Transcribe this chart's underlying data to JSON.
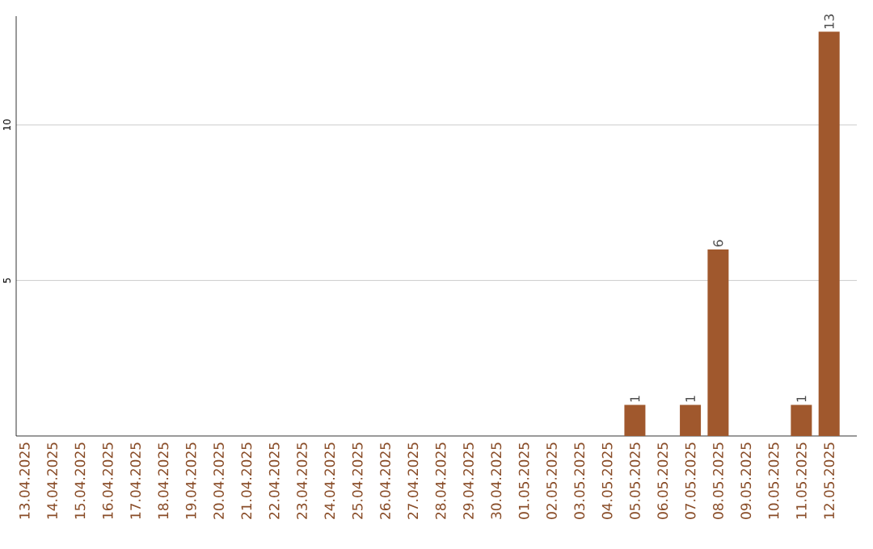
{
  "chart_data": {
    "type": "bar",
    "categories": [
      "13.04.2025",
      "14.04.2025",
      "15.04.2025",
      "16.04.2025",
      "17.04.2025",
      "18.04.2025",
      "19.04.2025",
      "20.04.2025",
      "21.04.2025",
      "22.04.2025",
      "23.04.2025",
      "24.04.2025",
      "25.04.2025",
      "26.04.2025",
      "27.04.2025",
      "28.04.2025",
      "29.04.2025",
      "30.04.2025",
      "01.05.2025",
      "02.05.2025",
      "03.05.2025",
      "04.05.2025",
      "05.05.2025",
      "06.05.2025",
      "07.05.2025",
      "08.05.2025",
      "09.05.2025",
      "10.05.2025",
      "11.05.2025",
      "12.05.2025"
    ],
    "values": [
      0,
      0,
      0,
      0,
      0,
      0,
      0,
      0,
      0,
      0,
      0,
      0,
      0,
      0,
      0,
      0,
      0,
      0,
      0,
      0,
      0,
      0,
      1,
      0,
      1,
      6,
      0,
      0,
      1,
      13
    ],
    "value_labels": [
      null,
      null,
      null,
      null,
      null,
      null,
      null,
      null,
      null,
      null,
      null,
      null,
      null,
      null,
      null,
      null,
      null,
      null,
      null,
      null,
      null,
      null,
      "1",
      null,
      "1",
      "6",
      null,
      null,
      "1",
      "13"
    ],
    "color": "#a0582d",
    "ylim": [
      0,
      13.5
    ],
    "yticks": [
      5,
      10
    ],
    "grid": "y"
  }
}
